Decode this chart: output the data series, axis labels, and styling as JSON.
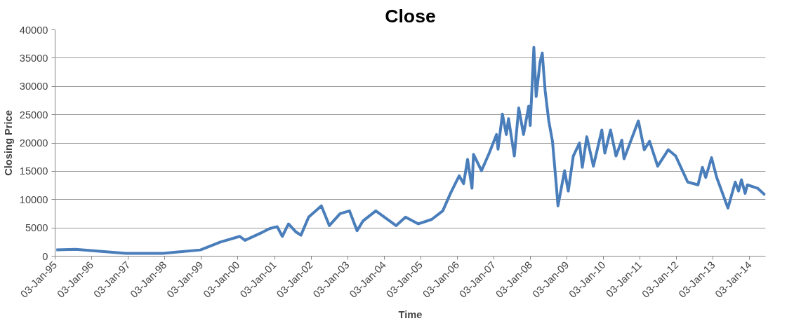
{
  "chart_data": {
    "type": "line",
    "title": "Close",
    "xlabel": "Time",
    "ylabel": "Closing Price",
    "x": [
      "1995-01-15",
      "1995-07-27",
      "1996-12-10",
      "1997-12-15",
      "1998-12-25",
      "1999-07-12",
      "2000-01-22",
      "2000-03-14",
      "2000-09-02",
      "2000-11-18",
      "2001-01-30",
      "2001-03-22",
      "2001-05-23",
      "2001-08-04",
      "2001-09-24",
      "2001-12-10",
      "2002-04-16",
      "2002-07-05",
      "2002-10-20",
      "2003-01-22",
      "2003-04-08",
      "2003-06-05",
      "2003-10-12",
      "2004-05-01",
      "2004-08-04",
      "2004-12-10",
      "2005-04-23",
      "2005-08-11",
      "2005-10-27",
      "2006-01-22",
      "2006-03-07",
      "2006-04-16",
      "2006-05-30",
      "2006-06-14",
      "2006-09-02",
      "2006-11-18",
      "2007-01-30",
      "2007-02-14",
      "2007-03-30",
      "2007-05-08",
      "2007-05-30",
      "2007-07-27",
      "2007-09-09",
      "2007-10-27",
      "2007-12-17",
      "2008-01-02",
      "2008-02-07",
      "2008-03-01",
      "2008-04-08",
      "2008-05-01",
      "2008-05-30",
      "2008-07-05",
      "2008-08-11",
      "2008-09-17",
      "2008-10-05",
      "2008-12-10",
      "2009-01-16",
      "2009-03-07",
      "2009-05-08",
      "2009-06-05",
      "2009-07-20",
      "2009-09-24",
      "2009-12-17",
      "2010-01-16",
      "2010-03-14",
      "2010-05-08",
      "2010-07-05",
      "2010-07-27",
      "2010-12-17",
      "2011-02-14",
      "2011-04-08",
      "2011-06-28",
      "2011-10-12",
      "2011-12-25",
      "2012-04-23",
      "2012-08-04",
      "2012-09-17",
      "2012-10-20",
      "2012-12-17",
      "2013-02-07",
      "2013-05-30",
      "2013-08-11",
      "2013-09-13",
      "2013-10-12",
      "2013-11-18",
      "2013-12-10",
      "2014-03-22",
      "2014-06-05"
    ],
    "series": [
      {
        "color": "#4a7ebb",
        "values": [
          1100,
          1200,
          500,
          500,
          1100,
          2500,
          3500,
          2800,
          4200,
          4900,
          5200,
          3500,
          5700,
          4300,
          3700,
          6900,
          8900,
          5400,
          7500,
          8000,
          4500,
          6200,
          8000,
          5400,
          6900,
          5700,
          6500,
          8000,
          11100,
          14200,
          12800,
          17100,
          12000,
          18000,
          15100,
          18200,
          21500,
          18900,
          25100,
          21500,
          24300,
          17700,
          26200,
          21500,
          26500,
          23100,
          36900,
          28200,
          34200,
          35900,
          29200,
          23900,
          20300,
          12800,
          8900,
          15100,
          11500,
          17700,
          20000,
          15700,
          21100,
          15900,
          22300,
          18200,
          22300,
          17700,
          20500,
          17200,
          23900,
          18800,
          20300,
          15900,
          18800,
          17700,
          13100,
          12600,
          15700,
          13900,
          17400,
          13900,
          8500,
          13100,
          11500,
          13500,
          11100,
          12600,
          12000,
          10800
        ]
      }
    ],
    "xlim": [
      "1995-01-03",
      "2014-06-10"
    ],
    "xticks": [
      {
        "value": "1995-01-03",
        "label": "03-Jan-95"
      },
      {
        "value": "1996-01-03",
        "label": "03-Jan-96"
      },
      {
        "value": "1997-01-03",
        "label": "03-Jan-97"
      },
      {
        "value": "1998-01-03",
        "label": "03-Jan-98"
      },
      {
        "value": "1999-01-03",
        "label": "03-Jan-99"
      },
      {
        "value": "2000-01-03",
        "label": "03-Jan-00"
      },
      {
        "value": "2001-01-03",
        "label": "03-Jan-01"
      },
      {
        "value": "2002-01-03",
        "label": "03-Jan-02"
      },
      {
        "value": "2003-01-03",
        "label": "03-Jan-03"
      },
      {
        "value": "2004-01-03",
        "label": "03-Jan-04"
      },
      {
        "value": "2005-01-03",
        "label": "03-Jan-05"
      },
      {
        "value": "2006-01-03",
        "label": "03-Jan-06"
      },
      {
        "value": "2007-01-03",
        "label": "03-Jan-07"
      },
      {
        "value": "2008-01-03",
        "label": "03-Jan-08"
      },
      {
        "value": "2009-01-03",
        "label": "03-Jan-09"
      },
      {
        "value": "2010-01-03",
        "label": "03-Jan-10"
      },
      {
        "value": "2011-01-03",
        "label": "03-Jan-11"
      },
      {
        "value": "2012-01-03",
        "label": "03-Jan-12"
      },
      {
        "value": "2013-01-03",
        "label": "03-Jan-13"
      },
      {
        "value": "2014-01-03",
        "label": "03-Jan-14"
      }
    ],
    "ylim": [
      0,
      40000
    ],
    "yticks": [
      0,
      5000,
      10000,
      15000,
      20000,
      25000,
      30000,
      35000,
      40000
    ],
    "grid": "y",
    "marker": "none",
    "line_style": "solid"
  }
}
